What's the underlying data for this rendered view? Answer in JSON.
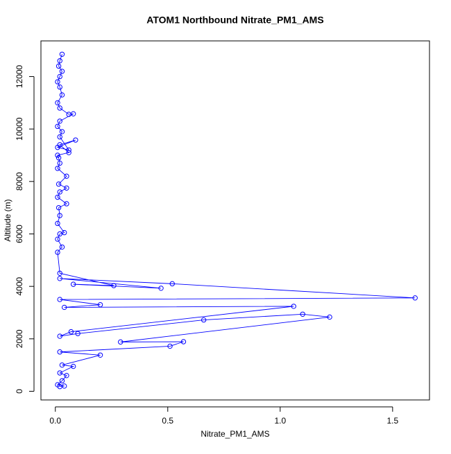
{
  "chart_data": {
    "type": "line",
    "title": "ATOM1 Northbound Nitrate_PM1_AMS",
    "x_label": "Nitrate_PM1_AMS",
    "y_label": "Altitude (m)",
    "xlim": [
      -0.064,
      1.664
    ],
    "ylim": [
      -330,
      13360
    ],
    "xticks": [
      {
        "value": 0,
        "label": "0.0"
      },
      {
        "value": 0.5,
        "label": "0.5"
      },
      {
        "value": 1,
        "label": "1.0"
      },
      {
        "value": 1.5,
        "label": "1.5"
      }
    ],
    "yticks": [
      0,
      2000,
      4000,
      6000,
      8000,
      10000,
      12000
    ],
    "color": "#0000ff",
    "x": [
      0.02,
      0.04,
      0.01,
      0.03,
      0.05,
      0.02,
      0.08,
      0.03,
      0.2,
      0.02,
      0.51,
      0.57,
      0.29,
      1.22,
      1.1,
      0.66,
      0.1,
      0.02,
      0.07,
      1.06,
      0.04,
      0.2,
      0.02,
      1.6,
      0.52,
      0.02,
      0.47,
      0.08,
      0.26,
      0.02,
      0.01,
      0.03,
      0.01,
      0.02,
      0.04,
      0.01,
      0.02,
      0.015,
      0.05,
      0.01,
      0.02,
      0.05,
      0.015,
      0.05,
      0.01,
      0.02,
      0.015,
      0.01,
      0.06,
      0.02,
      0.09,
      0.01,
      0.06,
      0.02,
      0.03,
      0.01,
      0.02,
      0.08,
      0.06,
      0.02,
      0.01,
      0.03,
      0.02,
      0.01,
      0.02,
      0.03,
      0.015,
      0.02,
      0.03
    ],
    "values": [
      180,
      200,
      250,
      400,
      600,
      700,
      950,
      1000,
      1380,
      1500,
      1720,
      1890,
      1880,
      2830,
      2940,
      2720,
      2200,
      2100,
      2270,
      3240,
      3200,
      3300,
      3500,
      3560,
      4100,
      4300,
      3930,
      4080,
      4030,
      4500,
      5300,
      5500,
      5800,
      6000,
      6050,
      6400,
      6700,
      7000,
      7150,
      7400,
      7600,
      7750,
      7900,
      8200,
      8500,
      8700,
      8900,
      9000,
      9100,
      9400,
      9580,
      9300,
      9200,
      9700,
      9900,
      10100,
      10300,
      10580,
      10560,
      10800,
      11000,
      11300,
      11600,
      11800,
      12000,
      12200,
      12400,
      12600,
      12850
    ]
  }
}
